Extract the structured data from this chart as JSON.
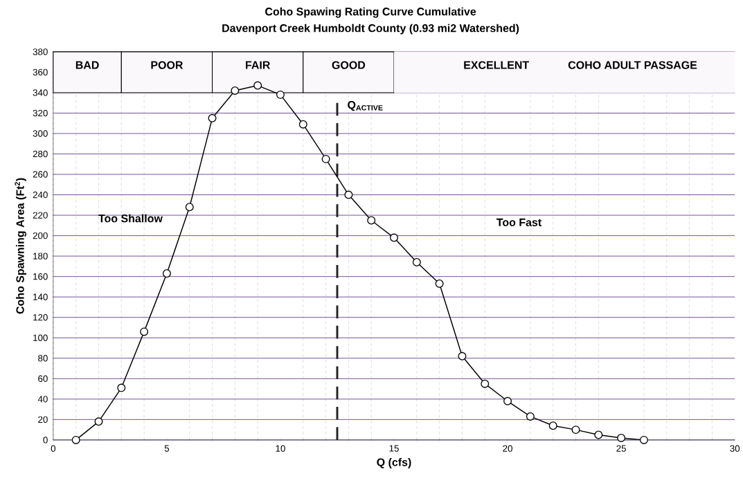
{
  "chart_data": {
    "type": "line",
    "title": "Coho Spawing Rating Curve Cumulative",
    "subtitle": "Davenport Creek Humboldt County (0.93 mi2 Watershed)",
    "xlabel": "Q (cfs)",
    "ylabel": "Coho Spawning Area (Ft$^{2}$)",
    "x": [
      1,
      2,
      3,
      4,
      5,
      6,
      7,
      8,
      9,
      10,
      11,
      12,
      13,
      14,
      15,
      16,
      17,
      18,
      19,
      20,
      21,
      22,
      23,
      24,
      25,
      26
    ],
    "series": [
      {
        "color": "#000000",
        "values": [
          0,
          18,
          51,
          106,
          163,
          228,
          315,
          342,
          347,
          338,
          309,
          275,
          240,
          215,
          198,
          174,
          153,
          82,
          55,
          38,
          23,
          14,
          10,
          5,
          2,
          0
        ]
      }
    ],
    "xlim": [
      0,
      30
    ],
    "ylim": [
      0,
      380
    ],
    "xticks": [
      0,
      5,
      10,
      15,
      20,
      25,
      30
    ],
    "yticks": [
      0,
      20,
      40,
      60,
      80,
      100,
      120,
      140,
      160,
      180,
      200,
      220,
      240,
      260,
      280,
      300,
      320,
      340,
      360,
      380
    ],
    "grid": true,
    "marker": "circle",
    "line_style": "solid",
    "ref_lines": [
      {
        "axis": "x",
        "value": 12.5,
        "label": "Q$_{ACTIVE}$",
        "color": "#222222",
        "line_style": "dashed"
      }
    ],
    "bands": [
      {
        "axis": "x",
        "from": 0,
        "to": 3,
        "label": "BAD",
        "color": "#fbf8fb"
      },
      {
        "axis": "x",
        "from": 3,
        "to": 7,
        "label": "POOR",
        "color": "#fbf8fb"
      },
      {
        "axis": "x",
        "from": 7,
        "to": 11,
        "label": "FAIR",
        "color": "#fbf8fb"
      },
      {
        "axis": "x",
        "from": 11,
        "to": 15,
        "label": "GOOD",
        "color": "#fbf8fb"
      },
      {
        "axis": "x",
        "from": 15,
        "to": 30,
        "label": "EXCELLENT",
        "color": "#fbf8fb"
      }
    ],
    "annotations": [
      "Too Shallow",
      "Too Fast",
      "COHO ADULT PASSAGE"
    ]
  }
}
